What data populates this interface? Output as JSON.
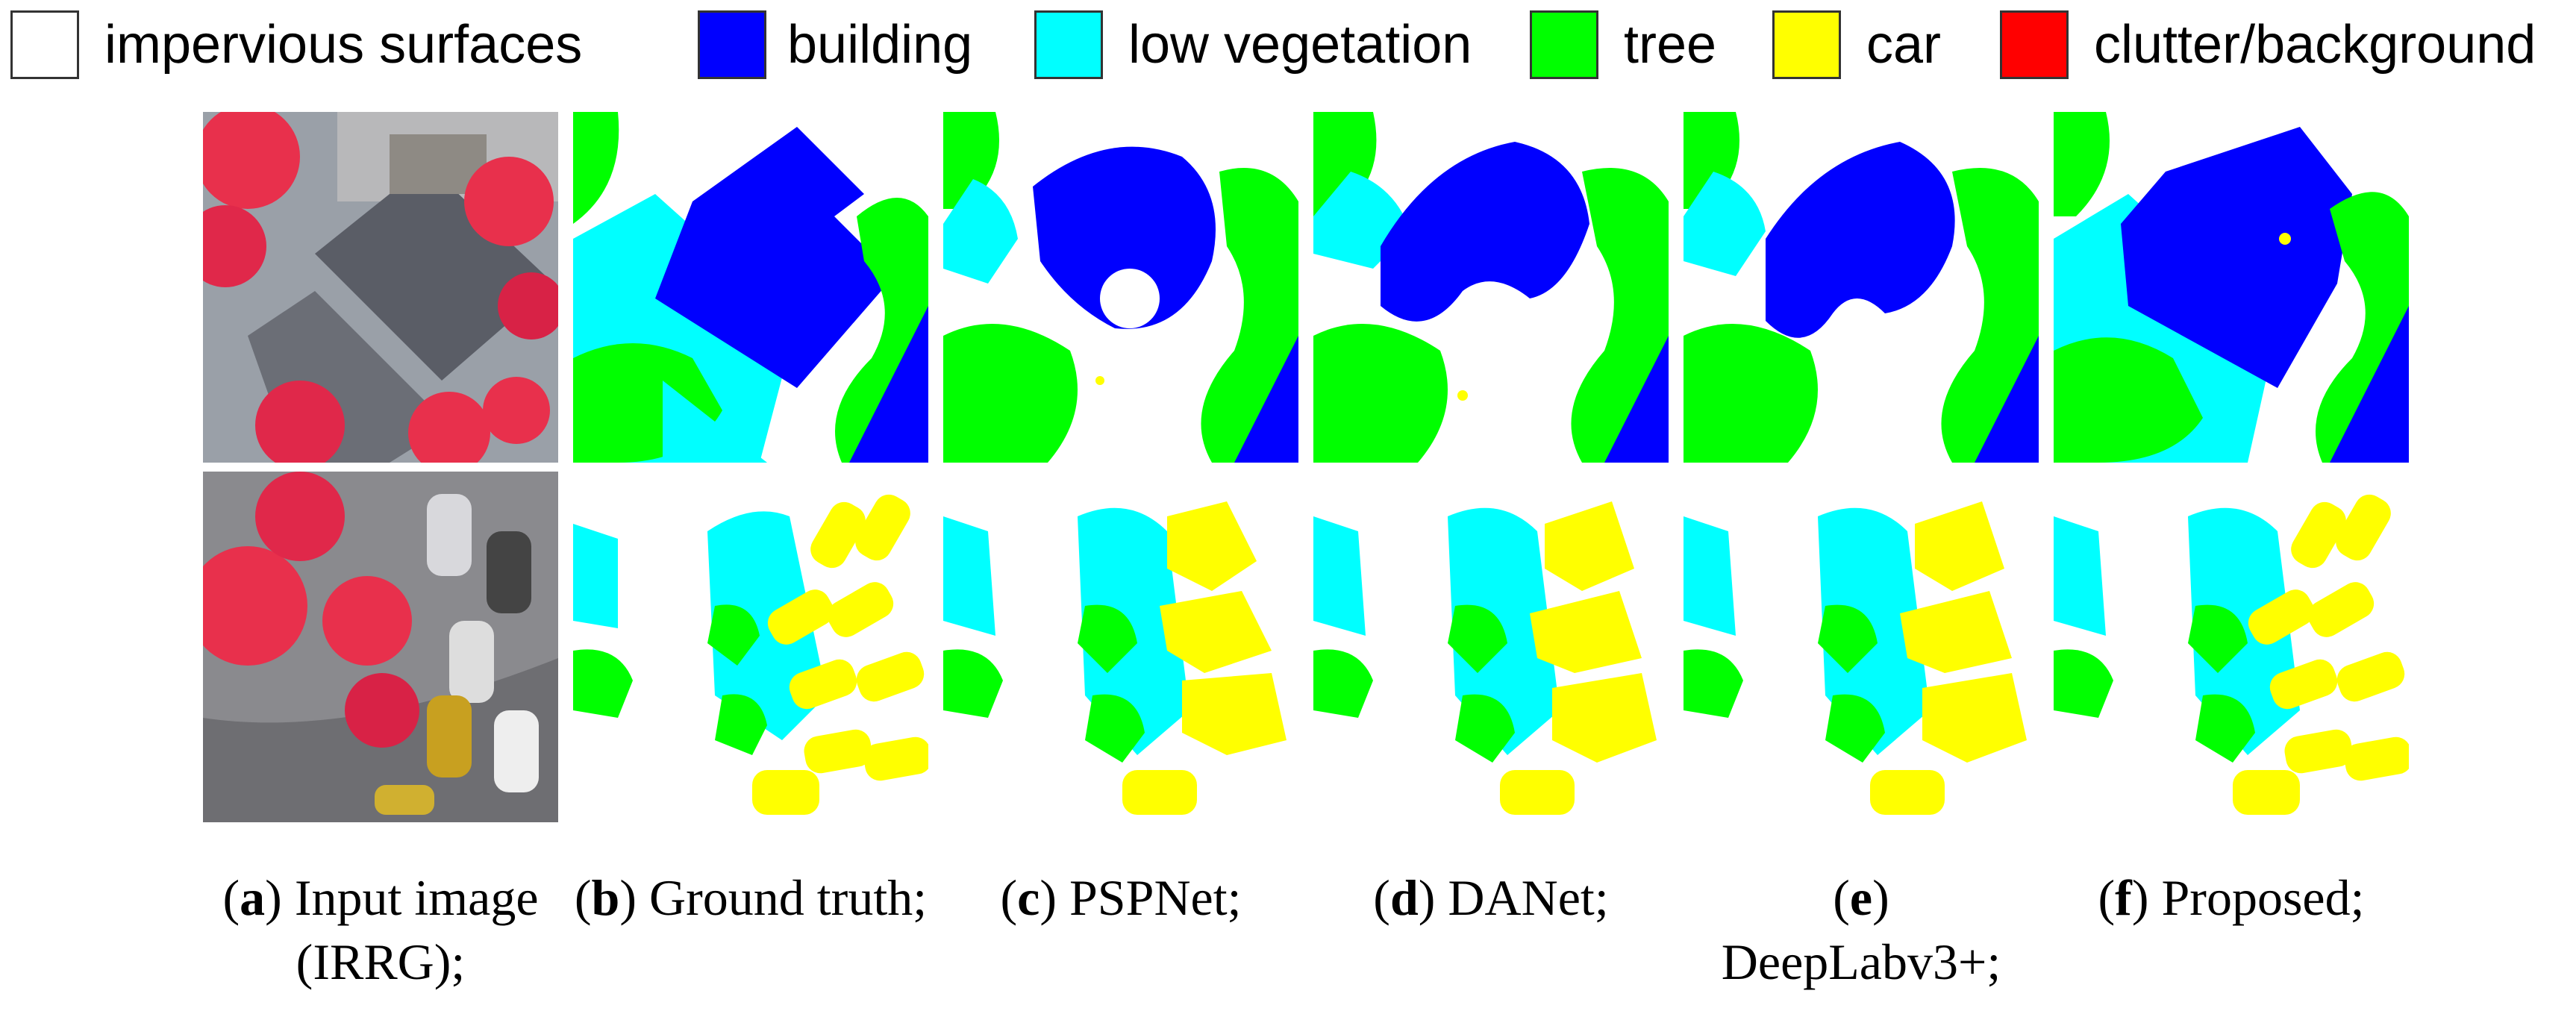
{
  "legend": {
    "items": [
      {
        "label": "impervious surfaces",
        "color": "#ffffff"
      },
      {
        "label": "building",
        "color": "#0000ff"
      },
      {
        "label": "low vegetation",
        "color": "#00ffff"
      },
      {
        "label": "tree",
        "color": "#00ff00"
      },
      {
        "label": "car",
        "color": "#ffff00"
      },
      {
        "label": "clutter/background",
        "color": "#ff0000"
      }
    ]
  },
  "captions": [
    {
      "letter": "a",
      "text": "Input image (IRRG);"
    },
    {
      "letter": "b",
      "text": "Ground truth;"
    },
    {
      "letter": "c",
      "text": "PSPNet;"
    },
    {
      "letter": "d",
      "text": "DANet;"
    },
    {
      "letter": "e",
      "text": "DeepLabv3+;"
    },
    {
      "letter": "f",
      "text": "Proposed;"
    }
  ],
  "colors": {
    "impervious": "#ffffff",
    "building": "#0000ff",
    "low_vegetation": "#00ffff",
    "tree": "#00ff00",
    "car": "#ffff00",
    "clutter": "#ff0000",
    "photo_red": "#e8304c",
    "photo_gray": "#8a8a8e",
    "photo_roof": "#5a5d66"
  }
}
